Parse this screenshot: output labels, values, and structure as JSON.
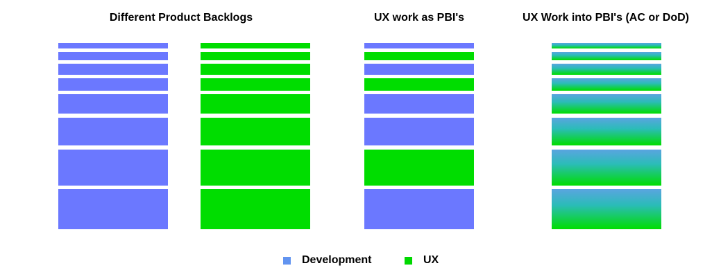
{
  "titles": {
    "different_backlogs": "Different Product Backlogs",
    "ux_as_pbis": "UX work as PBI's",
    "ux_into_pbis": "UX Work into PBI's (AC or DoD)"
  },
  "legend": {
    "development": "Development",
    "ux": "UX"
  },
  "colors": {
    "development": "#6b78ff",
    "ux": "#00dd00",
    "legend_development": "#6294f0",
    "legend_ux": "#00d800",
    "gradient_top": "#5aa4e0",
    "gradient_bottom": "#00dd00"
  },
  "icons": {
    "legend_development": "square-swatch-blue",
    "legend_ux": "square-swatch-green"
  },
  "columns": [
    {
      "id": "dev-backlog",
      "kind": "development",
      "sequence": [
        "development",
        "development",
        "development",
        "development",
        "development",
        "development",
        "development",
        "development"
      ]
    },
    {
      "id": "ux-backlog",
      "kind": "ux",
      "sequence": [
        "ux",
        "ux",
        "ux",
        "ux",
        "ux",
        "ux",
        "ux",
        "ux"
      ]
    },
    {
      "id": "mixed-backlog",
      "kind": "mixed",
      "sequence": [
        "development",
        "ux",
        "development",
        "ux",
        "development",
        "development",
        "ux",
        "development"
      ]
    },
    {
      "id": "blended-backlog",
      "kind": "blended",
      "sequence": [
        "blended",
        "blended",
        "blended",
        "blended",
        "blended",
        "blended",
        "blended",
        "blended"
      ]
    }
  ]
}
